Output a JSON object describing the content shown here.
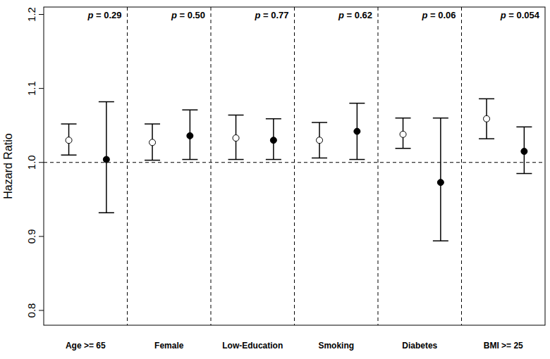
{
  "chart_data": {
    "type": "scatter",
    "ylabel": "Hazard Ratio",
    "categories": [
      "Age >= 65",
      "Female",
      "Low-Education",
      "Smoking",
      "Diabetes",
      "BMI >= 25"
    ],
    "series": [
      {
        "color": "#000000",
        "marker": "circle-open",
        "values": [
          1.03,
          1.027,
          1.033,
          1.03,
          1.038,
          1.059
        ],
        "lower": [
          1.01,
          1.003,
          1.004,
          1.006,
          1.019,
          1.032
        ],
        "upper": [
          1.052,
          1.052,
          1.064,
          1.054,
          1.06,
          1.086
        ]
      },
      {
        "color": "#000000",
        "marker": "circle",
        "values": [
          1.004,
          1.036,
          1.03,
          1.042,
          0.973,
          1.015
        ],
        "lower": [
          0.932,
          1.004,
          1.004,
          1.004,
          0.894,
          0.985
        ],
        "upper": [
          1.082,
          1.071,
          1.059,
          1.08,
          1.06,
          1.048
        ]
      }
    ],
    "annotations": [
      "p = 0.29",
      "p = 0.50",
      "p = 0.77",
      "p = 0.62",
      "p = 0.06",
      "p = 0.054"
    ],
    "reference_line": 1,
    "ylim": [
      0.78,
      1.21
    ],
    "yticks": [
      0.8,
      0.9,
      {
        "value": 1,
        "label": "1.0"
      },
      1.1,
      1.2
    ]
  }
}
